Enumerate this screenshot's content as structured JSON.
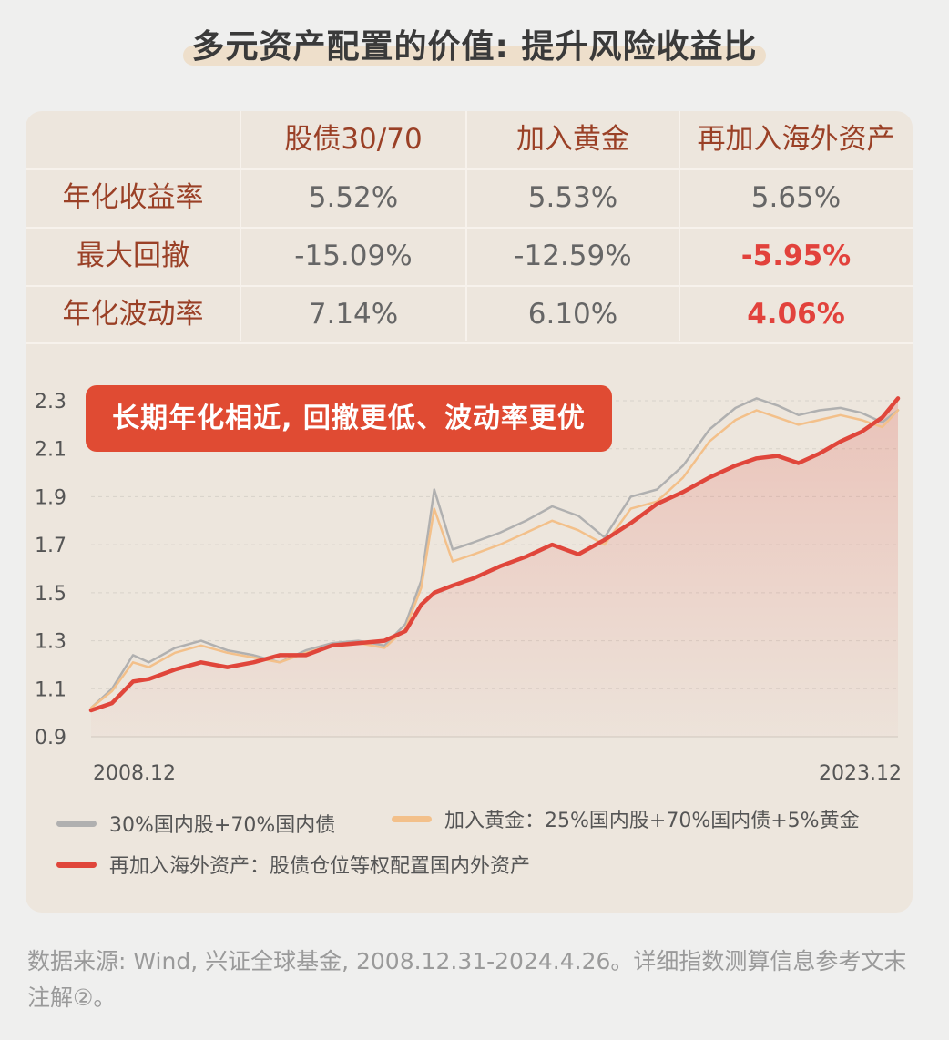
{
  "title": "多元资产配置的价值: 提升风险收益比",
  "table": {
    "columns": [
      "股债30/70",
      "加入黄金",
      "再加入海外资产"
    ],
    "rows": [
      {
        "label": "年化收益率",
        "values": [
          "5.52%",
          "5.53%",
          "5.65%"
        ]
      },
      {
        "label": "最大回撤",
        "values": [
          "-15.09%",
          "-12.59%",
          "-5.95%"
        ]
      },
      {
        "label": "年化波动率",
        "values": [
          "7.14%",
          "6.10%",
          "4.06%"
        ]
      }
    ]
  },
  "banner": "长期年化相近, 回撤更低、波动率更优",
  "legend": [
    {
      "label": "30%国内股+70%国内债",
      "color": "#b0b0b0"
    },
    {
      "label": "加入黄金：25%国内股+70%国内债+5%黄金",
      "color": "#f3c08a"
    },
    {
      "label": "再加入海外资产：股债仓位等权配置国内外资产",
      "color": "#e0463b"
    }
  ],
  "source": "数据来源: Wind, 兴证全球基金, 2008.12.31-2024.4.26。详细指数测算信息参考文末注解②。",
  "chart_data": {
    "type": "line",
    "x_start_label": "2008.12",
    "x_end_label": "2023.12",
    "ylim": [
      0.9,
      2.3
    ],
    "yticks": [
      2.3,
      2.1,
      1.9,
      1.7,
      1.5,
      1.3,
      1.1,
      0.9
    ],
    "grid": true,
    "x": [
      2008.9,
      2009.3,
      2009.7,
      2010.0,
      2010.5,
      2011.0,
      2011.5,
      2012.0,
      2012.5,
      2013.0,
      2013.5,
      2014.0,
      2014.5,
      2014.9,
      2015.2,
      2015.45,
      2015.8,
      2016.2,
      2016.7,
      2017.2,
      2017.7,
      2018.2,
      2018.7,
      2019.2,
      2019.7,
      2020.2,
      2020.7,
      2021.2,
      2021.6,
      2022.0,
      2022.4,
      2022.8,
      2023.2,
      2023.6,
      2024.0,
      2024.3
    ],
    "series": [
      {
        "name": "30%国内股+70%国内债",
        "color": "#b0b0b0",
        "values": [
          1.02,
          1.1,
          1.24,
          1.21,
          1.27,
          1.3,
          1.26,
          1.24,
          1.21,
          1.26,
          1.29,
          1.3,
          1.28,
          1.37,
          1.55,
          1.93,
          1.68,
          1.71,
          1.75,
          1.8,
          1.86,
          1.82,
          1.73,
          1.9,
          1.93,
          2.03,
          2.18,
          2.27,
          2.31,
          2.28,
          2.24,
          2.26,
          2.27,
          2.25,
          2.21,
          2.26
        ]
      },
      {
        "name": "加入黄金：25%国内股+70%国内债+5%黄金",
        "color": "#f3c08a",
        "values": [
          1.02,
          1.09,
          1.21,
          1.19,
          1.25,
          1.28,
          1.25,
          1.23,
          1.21,
          1.25,
          1.28,
          1.29,
          1.27,
          1.35,
          1.52,
          1.85,
          1.63,
          1.66,
          1.7,
          1.75,
          1.8,
          1.76,
          1.7,
          1.85,
          1.88,
          1.98,
          2.13,
          2.22,
          2.26,
          2.23,
          2.2,
          2.22,
          2.24,
          2.22,
          2.19,
          2.26
        ]
      },
      {
        "name": "再加入海外资产：股债仓位等权配置国内外资产",
        "color": "#e0463b",
        "values": [
          1.01,
          1.04,
          1.13,
          1.14,
          1.18,
          1.21,
          1.19,
          1.21,
          1.24,
          1.24,
          1.28,
          1.29,
          1.3,
          1.34,
          1.45,
          1.5,
          1.53,
          1.56,
          1.61,
          1.65,
          1.7,
          1.66,
          1.72,
          1.79,
          1.87,
          1.92,
          1.98,
          2.03,
          2.06,
          2.07,
          2.04,
          2.08,
          2.13,
          2.17,
          2.23,
          2.31
        ]
      }
    ]
  }
}
